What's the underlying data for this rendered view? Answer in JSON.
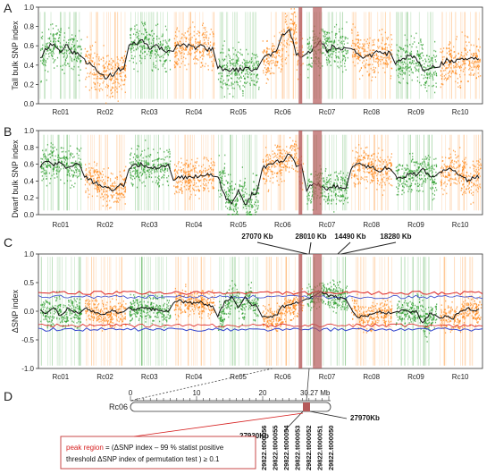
{
  "colors": {
    "odd_chrom": "#2e9e2e",
    "even_chrom": "#ff8a1c",
    "mean_line": "#111111",
    "ci99_upper": "#dd2222",
    "ci99_lower": "#3344cc",
    "highlight": "#b55a5a",
    "connector": "#444444",
    "peak_label": "#d62020"
  },
  "chromosomes": [
    "Rc01",
    "Rc02",
    "Rc03",
    "Rc04",
    "Rc05",
    "Rc06",
    "Rc07",
    "Rc08",
    "Rc09",
    "Rc10"
  ],
  "chart_data": [
    {
      "panel": "A",
      "type": "scatter",
      "ylabel": "Tall bulk SNP index",
      "ylim": [
        0,
        1.0
      ],
      "yticks": [
        "0.0",
        "0.2",
        "0.4",
        "0.6",
        "0.8",
        "1.0"
      ],
      "categories": [
        "Rc01",
        "Rc02",
        "Rc03",
        "Rc04",
        "Rc05",
        "Rc06",
        "Rc07",
        "Rc08",
        "Rc09",
        "Rc10"
      ],
      "sliding_window_mean": [
        [
          0.48,
          0.58,
          0.62,
          0.55,
          0.6,
          0.52
        ],
        [
          0.45,
          0.4,
          0.32,
          0.28,
          0.3,
          0.35
        ],
        [
          0.6,
          0.62,
          0.65,
          0.58,
          0.6,
          0.55
        ],
        [
          0.55,
          0.62,
          0.6,
          0.58,
          0.6,
          0.56
        ],
        [
          0.38,
          0.35,
          0.36,
          0.34,
          0.38,
          0.36
        ],
        [
          0.45,
          0.5,
          0.55,
          0.7,
          0.78,
          0.5
        ],
        [
          0.5,
          0.58,
          0.65,
          0.55,
          0.6,
          0.58
        ],
        [
          0.58,
          0.52,
          0.48,
          0.5,
          0.54,
          0.52
        ],
        [
          0.42,
          0.45,
          0.5,
          0.48,
          0.35,
          0.38
        ],
        [
          0.4,
          0.45,
          0.42,
          0.48,
          0.44,
          0.46
        ]
      ]
    },
    {
      "panel": "B",
      "type": "scatter",
      "ylabel": "Dwarf bulk SNP index",
      "ylim": [
        0,
        1.0
      ],
      "yticks": [
        "0.0",
        "0.2",
        "0.4",
        "0.6",
        "0.8",
        "1.0"
      ],
      "categories": [
        "Rc01",
        "Rc02",
        "Rc03",
        "Rc04",
        "Rc05",
        "Rc06",
        "Rc07",
        "Rc08",
        "Rc09",
        "Rc10"
      ],
      "sliding_window_mean": [
        [
          0.58,
          0.62,
          0.6,
          0.62,
          0.55,
          0.6
        ],
        [
          0.45,
          0.4,
          0.36,
          0.32,
          0.3,
          0.35
        ],
        [
          0.55,
          0.58,
          0.6,
          0.55,
          0.56,
          0.58
        ],
        [
          0.42,
          0.45,
          0.44,
          0.46,
          0.45,
          0.48
        ],
        [
          0.45,
          0.22,
          0.12,
          0.3,
          0.1,
          0.25
        ],
        [
          0.55,
          0.6,
          0.62,
          0.65,
          0.72,
          0.58
        ],
        [
          0.3,
          0.38,
          0.35,
          0.3,
          0.34,
          0.32
        ],
        [
          0.55,
          0.6,
          0.58,
          0.56,
          0.52,
          0.55
        ],
        [
          0.45,
          0.42,
          0.5,
          0.48,
          0.55,
          0.45
        ],
        [
          0.5,
          0.55,
          0.52,
          0.48,
          0.4,
          0.45
        ]
      ]
    },
    {
      "panel": "C",
      "type": "scatter",
      "ylabel": "ΔSNP index",
      "ylim": [
        -1.0,
        1.0
      ],
      "yticks": [
        "1.0",
        "0.5",
        "0.0",
        "-0.5",
        "-1.0"
      ],
      "categories": [
        "Rc01",
        "Rc02",
        "Rc03",
        "Rc04",
        "Rc05",
        "Rc06",
        "Rc07",
        "Rc08",
        "Rc09",
        "Rc10"
      ],
      "threshold_upper": 0.32,
      "threshold_lower": -0.32,
      "sliding_window_mean": [
        [
          0.02,
          -0.05,
          0.05,
          -0.08,
          0.04,
          -0.02
        ],
        [
          0.05,
          0.0,
          -0.04,
          -0.06,
          0.02,
          -0.02
        ],
        [
          0.05,
          0.02,
          0.06,
          0.04,
          0.03,
          0.0
        ],
        [
          0.15,
          0.18,
          0.15,
          0.14,
          0.16,
          0.1
        ],
        [
          -0.08,
          0.15,
          0.25,
          0.05,
          0.28,
          0.1
        ],
        [
          -0.1,
          -0.12,
          -0.08,
          0.08,
          0.1,
          0.15
        ],
        [
          0.2,
          0.25,
          0.32,
          0.28,
          0.26,
          0.22
        ],
        [
          0.05,
          -0.1,
          -0.08,
          -0.06,
          0.0,
          -0.03
        ],
        [
          -0.03,
          0.02,
          -0.02,
          0.0,
          -0.2,
          -0.05
        ],
        [
          -0.1,
          -0.08,
          -0.12,
          0.0,
          0.05,
          0.02
        ]
      ]
    }
  ],
  "panels": {
    "A": {
      "letter": "A"
    },
    "B": {
      "letter": "B"
    },
    "C": {
      "letter": "C"
    },
    "D": {
      "letter": "D"
    }
  },
  "region_labels": [
    "27070 Kb",
    "28010 Kb",
    "14490 Kb",
    "18280 Kb"
  ],
  "panel_d": {
    "chrom": "Rc06",
    "scale_ticks": [
      "0",
      "10",
      "20"
    ],
    "scale_end": "30.27 Mb",
    "left_bound": "27930Kb",
    "right_bound": "27970Kb",
    "genes": [
      "29822.t000056",
      "29822.t000055",
      "29822.t000054",
      "29822.t000053",
      "29822.t000052",
      "29822.t000051",
      "29822.t000050"
    ],
    "note": {
      "peak_term": "peak region",
      "line1": " = (ΔSNP index – 99 % statist positive",
      "line2": "threshold ΔSNP index of permutation test ) ≥ 0.1"
    }
  }
}
